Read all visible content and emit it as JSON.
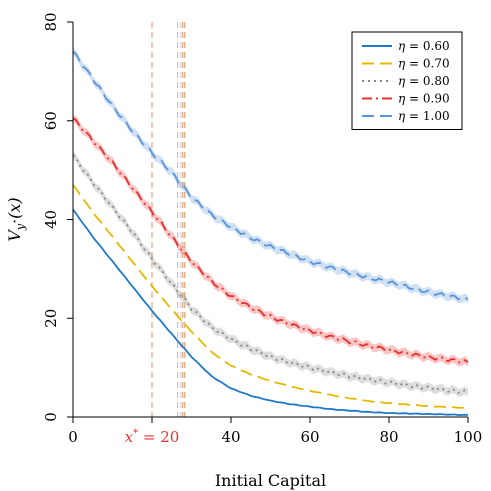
{
  "chart_data": {
    "type": "line",
    "title": "",
    "xlabel": "Initial Capital",
    "ylabel": "V_{y*}(x)",
    "xlim": [
      0,
      100
    ],
    "ylim": [
      0,
      80
    ],
    "xticks": [
      0,
      20,
      40,
      60,
      80,
      100
    ],
    "xtick_labels": [
      "0",
      "x* = 20",
      "40",
      "60",
      "80",
      "100"
    ],
    "xtick_label_colors": [
      "#000000",
      "#e8312f",
      "#000000",
      "#000000",
      "#000000",
      "#000000"
    ],
    "yticks": [
      0,
      20,
      40,
      60,
      80
    ],
    "ytick_labels": [
      "0",
      "20",
      "40",
      "60",
      "80"
    ],
    "grid": false,
    "legend_position": "top-right",
    "x": [
      0,
      5,
      10,
      15,
      20,
      25,
      30,
      35,
      40,
      45,
      50,
      55,
      60,
      65,
      70,
      75,
      80,
      85,
      90,
      95,
      100
    ],
    "series": [
      {
        "name": "η = 0.60",
        "color": "#1f78c8",
        "dash": "solid",
        "band": false,
        "values": [
          42,
          36.5,
          31.5,
          26.5,
          21.5,
          16.8,
          12.2,
          8.3,
          5.8,
          4.3,
          3.3,
          2.6,
          2.1,
          1.6,
          1.3,
          1.0,
          0.8,
          0.7,
          0.6,
          0.5,
          0.4
        ]
      },
      {
        "name": "η = 0.70",
        "color": "#e6b800",
        "dash": "long-dash",
        "band": false,
        "values": [
          47,
          41.5,
          36.5,
          31.5,
          26.5,
          21.8,
          17.3,
          13.2,
          10.4,
          8.6,
          7.3,
          6.2,
          5.3,
          4.5,
          3.8,
          3.2,
          2.8,
          2.5,
          2.2,
          2.0,
          1.8
        ]
      },
      {
        "name": "η = 0.80",
        "color": "#888888",
        "dash": "dotted",
        "band": true,
        "values": [
          53,
          47.5,
          42.5,
          37.5,
          32,
          27,
          22,
          18.2,
          15.8,
          13.8,
          12.2,
          11,
          10,
          9.1,
          8.3,
          7.6,
          7.0,
          6.4,
          5.9,
          5.4,
          5.0
        ]
      },
      {
        "name": "η = 0.90",
        "color": "#e8312f",
        "dash": "dash-dot",
        "band": true,
        "values": [
          60.5,
          56,
          51.5,
          46.5,
          41.5,
          36.5,
          31.5,
          27.5,
          24.5,
          22.2,
          20.3,
          18.8,
          17.5,
          16.3,
          15.3,
          14.4,
          13.6,
          12.8,
          12.1,
          11.6,
          11.1
        ]
      },
      {
        "name": "η = 1.00",
        "color": "#5b95d9",
        "dash": "long-dash",
        "band": true,
        "values": [
          74,
          68.5,
          63,
          58,
          53.5,
          49.5,
          44.5,
          41,
          38.5,
          36.3,
          34.5,
          33,
          31.5,
          30.3,
          29.2,
          28.2,
          27.3,
          26.3,
          25.3,
          24.5,
          23.8
        ]
      }
    ],
    "vlines": [
      {
        "x": 20,
        "color": "#f0a080"
      },
      {
        "x": 26.5,
        "color": "#aac6ea"
      },
      {
        "x": 27.3,
        "color": "#f0c8c8"
      },
      {
        "x": 27.8,
        "color": "#c0a890"
      },
      {
        "x": 28.3,
        "color": "#e8a060"
      }
    ]
  }
}
